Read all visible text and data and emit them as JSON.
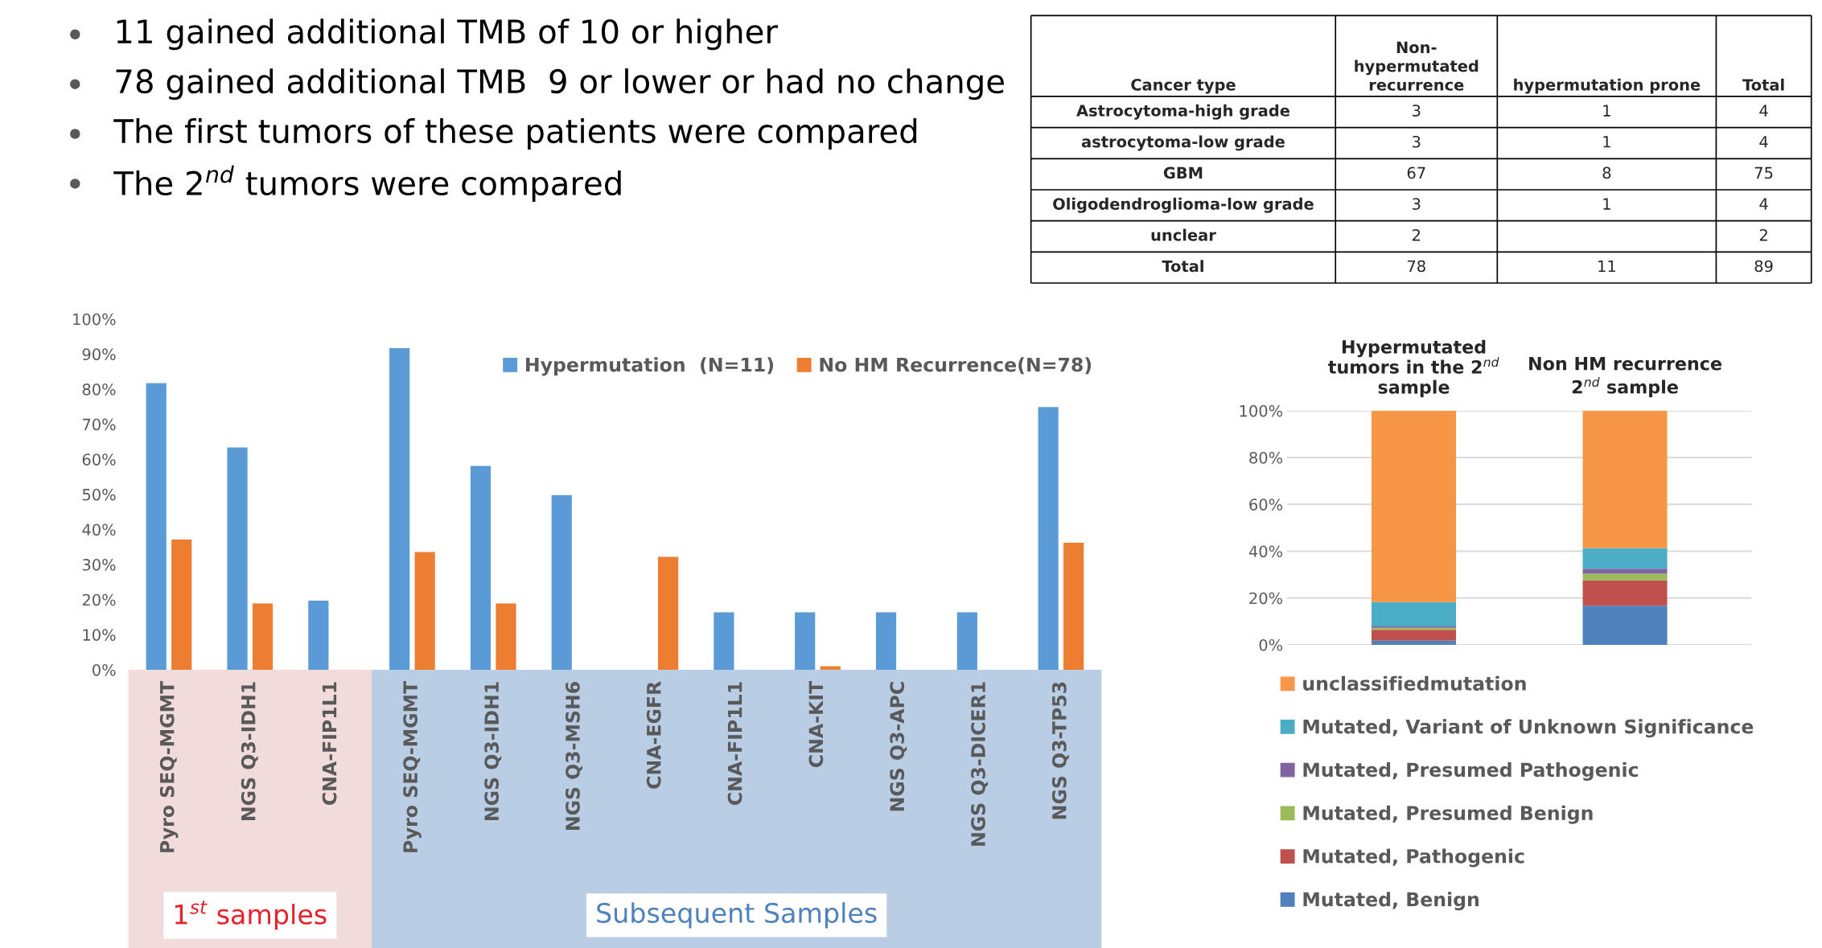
{
  "chart_data": [
    {
      "type": "other",
      "annotations": [
        "11 gained additional TMB of 10 or higher",
        "78 gained additional TMB  9 or lower or had no change",
        "The first tumors of these patients were compared",
        "The 2$^{nd}$ tumors were compared"
      ]
    },
    {
      "type": "other",
      "categories": [
        "Cancer type",
        "Non-\nhypermutated\nrecurrence",
        "hypermutation prone",
        "Total"
      ],
      "y_categories": [
        "Astrocytoma-high grade",
        "astrocytoma-low grade",
        "GBM",
        "Oligodendroglioma-low grade",
        "unclear",
        "Total"
      ],
      "cell_labels": [
        [
          "3",
          "1",
          "4"
        ],
        [
          "3",
          "1",
          "4"
        ],
        [
          "67",
          "8",
          "75"
        ],
        [
          "3",
          "1",
          "4"
        ],
        [
          "2",
          null,
          "2"
        ],
        [
          "78",
          "11",
          "89"
        ]
      ]
    },
    {
      "type": "bar",
      "categories": [
        "Pyro SEQ-MGMT",
        "NGS Q3-IDH1",
        "CNA-FIP1L1",
        "Pyro SEQ-MGMT",
        "NGS Q3-IDH1",
        "NGS Q3-MSH6",
        "CNA-EGFR",
        "CNA-FIP1L1",
        "CNA-KIT",
        "NGS Q3-APC",
        "NGS Q3-DICER1",
        "NGS Q3-TP53"
      ],
      "series": [
        {
          "name": "Hypermutation  (N=11)",
          "color": "#5b9bd5",
          "values": [
            81.7,
            63.4,
            19.7,
            91.7,
            58.1,
            49.8,
            0,
            16.4,
            16.4,
            16.4,
            16.4,
            74.9
          ]
        },
        {
          "name": "No HM Recurrence(N=78)",
          "color": "#ed7d31",
          "values": [
            37.1,
            18.9,
            0,
            33.6,
            18.9,
            0,
            32.2,
            0,
            1,
            0,
            0,
            36.2
          ]
        }
      ],
      "ylim": [
        0,
        100
      ],
      "yticks": [
        {
          "value": 0,
          "label": "0%"
        },
        {
          "value": 10,
          "label": "10%"
        },
        {
          "value": 20,
          "label": "20%"
        },
        {
          "value": 30,
          "label": "30%"
        },
        {
          "value": 40,
          "label": "40%"
        },
        {
          "value": 50,
          "label": "50%"
        },
        {
          "value": 60,
          "label": "60%"
        },
        {
          "value": 70,
          "label": "70%"
        },
        {
          "value": 80,
          "label": "80%"
        },
        {
          "value": 90,
          "label": "90%"
        },
        {
          "value": 100,
          "label": "100%"
        }
      ],
      "annotations": [
        "1$^{st}$ samples",
        "Subsequent Samples"
      ],
      "grid": false,
      "legend": "top right"
    },
    {
      "type": "bar",
      "stacked": true,
      "categories": [
        "Hypermutated\ntumors in the 2$^{nd}$\nsample",
        "Non HM recurrence\n2$^{nd}$ sample"
      ],
      "series": [
        {
          "name": "Mutated, Benign",
          "color": "#4f81bd",
          "values": [
            1.8,
            16.7
          ]
        },
        {
          "name": "Mutated, Pathogenic",
          "color": "#c0504d",
          "values": [
            4.6,
            10.8
          ]
        },
        {
          "name": "Mutated, Presumed Benign",
          "color": "#9bbb59",
          "values": [
            0.9,
            2.9
          ]
        },
        {
          "name": "Mutated, Presumed Pathogenic",
          "color": "#8064a2",
          "values": [
            0.6,
            2.1
          ]
        },
        {
          "name": "Mutated, Variant of Unknown Significance",
          "color": "#4bacc6",
          "values": [
            10.4,
            8.8
          ]
        },
        {
          "name": "unclassifiedmutation",
          "color": "#f79646",
          "values": [
            81.7,
            58.7
          ]
        }
      ],
      "ylim": [
        0,
        100
      ],
      "yticks": [
        {
          "value": 0,
          "label": "0%"
        },
        {
          "value": 20,
          "label": "20%"
        },
        {
          "value": 40,
          "label": "40%"
        },
        {
          "value": 60,
          "label": "60%"
        },
        {
          "value": 80,
          "label": "80%"
        },
        {
          "value": 100,
          "label": "100%"
        }
      ],
      "grid": "y",
      "legend": "bottom"
    }
  ]
}
